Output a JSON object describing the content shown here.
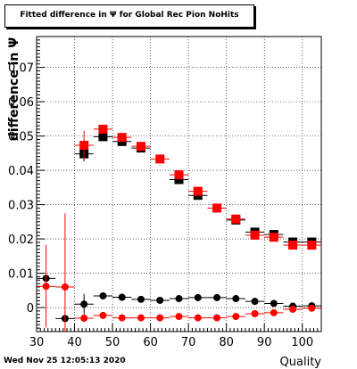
{
  "chart_data": {
    "type": "scatter",
    "title": "Fitted difference in Ψ  for Global Rec Pion NoHits",
    "xlabel": "Quality",
    "ylabel": "difference in Ψ",
    "xlim": [
      30,
      105
    ],
    "ylim": [
      -0.007,
      0.079
    ],
    "xticks": [
      30,
      40,
      50,
      60,
      70,
      80,
      90,
      100
    ],
    "xtick_labels": [
      "30",
      "40",
      "50",
      "60",
      "70",
      "80",
      "90",
      "100"
    ],
    "yticks": [
      0,
      0.01,
      0.02,
      0.03,
      0.04,
      0.05,
      0.06,
      0.07
    ],
    "ytick_labels": [
      "0",
      "0.01",
      "0.02",
      "0.03",
      "0.04",
      "0.05",
      "0.06",
      "0.07"
    ],
    "grid": true,
    "series": [
      {
        "marker": "square",
        "color": "#000000",
        "points": [
          {
            "x": 42.5,
            "y": 0.0448,
            "yerr": 0.0022
          },
          {
            "x": 47.5,
            "y": 0.0498,
            "yerr": 0.0008
          },
          {
            "x": 52.5,
            "y": 0.0484,
            "yerr": 0.0004
          },
          {
            "x": 57.5,
            "y": 0.0465,
            "yerr": 0.0004
          },
          {
            "x": 67.5,
            "y": 0.0373,
            "yerr": 0.0004
          },
          {
            "x": 72.5,
            "y": 0.0327,
            "yerr": 0.0004
          },
          {
            "x": 82.5,
            "y": 0.0255,
            "yerr": 0.0004
          },
          {
            "x": 87.5,
            "y": 0.022,
            "yerr": 0.0004
          },
          {
            "x": 92.5,
            "y": 0.0213,
            "yerr": 0.0004
          },
          {
            "x": 97.5,
            "y": 0.0191,
            "yerr": 0.0004
          },
          {
            "x": 102.5,
            "y": 0.0191,
            "yerr": 0.0004
          }
        ]
      },
      {
        "marker": "square",
        "color": "#ff0000",
        "points": [
          {
            "x": 42.5,
            "y": 0.0473,
            "yerr": 0.0042
          },
          {
            "x": 47.5,
            "y": 0.052,
            "yerr": 0.001
          },
          {
            "x": 52.5,
            "y": 0.0496,
            "yerr": 0.0004
          },
          {
            "x": 57.5,
            "y": 0.047,
            "yerr": 0.0004
          },
          {
            "x": 62.5,
            "y": 0.0433,
            "yerr": 0.0004
          },
          {
            "x": 67.5,
            "y": 0.0387,
            "yerr": 0.0004
          },
          {
            "x": 72.5,
            "y": 0.0339,
            "yerr": 0.0004
          },
          {
            "x": 77.5,
            "y": 0.029,
            "yerr": 0.0004
          },
          {
            "x": 82.5,
            "y": 0.0258,
            "yerr": 0.0004
          },
          {
            "x": 87.5,
            "y": 0.0211,
            "yerr": 0.0004
          },
          {
            "x": 92.5,
            "y": 0.0205,
            "yerr": 0.0004
          },
          {
            "x": 97.5,
            "y": 0.0182,
            "yerr": 0.0004
          },
          {
            "x": 102.5,
            "y": 0.0182,
            "yerr": 0.0004
          }
        ]
      },
      {
        "marker": "circle",
        "color": "#000000",
        "points": [
          {
            "x": 32.5,
            "y": 0.0085,
            "yerr": 0.0006
          },
          {
            "x": 37.5,
            "y": -0.0032,
            "yerr": 0.0006
          },
          {
            "x": 42.5,
            "y": 0.001,
            "yerr": 0.003
          },
          {
            "x": 47.5,
            "y": 0.0034,
            "yerr": 0.0006
          },
          {
            "x": 52.5,
            "y": 0.003,
            "yerr": 0.0006
          },
          {
            "x": 57.5,
            "y": 0.0024,
            "yerr": 0.0005
          },
          {
            "x": 62.5,
            "y": 0.0021,
            "yerr": 0.0005
          },
          {
            "x": 67.5,
            "y": 0.0026,
            "yerr": 0.0005
          },
          {
            "x": 72.5,
            "y": 0.0029,
            "yerr": 0.0005
          },
          {
            "x": 77.5,
            "y": 0.0029,
            "yerr": 0.0005
          },
          {
            "x": 82.5,
            "y": 0.0026,
            "yerr": 0.0005
          },
          {
            "x": 87.5,
            "y": 0.0018,
            "yerr": 0.0005
          },
          {
            "x": 92.5,
            "y": 0.0012,
            "yerr": 0.0005
          },
          {
            "x": 97.5,
            "y": 0.0004,
            "yerr": 0.0005
          },
          {
            "x": 102.5,
            "y": 0.0005,
            "yerr": 0.0005
          }
        ]
      },
      {
        "marker": "circle",
        "color": "#ff0000",
        "points": [
          {
            "x": 32.5,
            "y": 0.0062,
            "yerr": 0.012
          },
          {
            "x": 37.5,
            "y": 0.006,
            "yerr": 0.0215
          },
          {
            "x": 42.5,
            "y": -0.0031,
            "yerr": 0.001
          },
          {
            "x": 47.5,
            "y": -0.0023,
            "yerr": 0.0007
          },
          {
            "x": 52.5,
            "y": -0.003,
            "yerr": 0.0005
          },
          {
            "x": 57.5,
            "y": -0.003,
            "yerr": 0.0005
          },
          {
            "x": 62.5,
            "y": -0.003,
            "yerr": 0.0005
          },
          {
            "x": 67.5,
            "y": -0.0026,
            "yerr": 0.0005
          },
          {
            "x": 72.5,
            "y": -0.003,
            "yerr": 0.0005
          },
          {
            "x": 77.5,
            "y": -0.003,
            "yerr": 0.0005
          },
          {
            "x": 82.5,
            "y": -0.0026,
            "yerr": 0.0005
          },
          {
            "x": 87.5,
            "y": -0.0018,
            "yerr": 0.0005
          },
          {
            "x": 92.5,
            "y": -0.0015,
            "yerr": 0.0005
          },
          {
            "x": 97.5,
            "y": -0.0005,
            "yerr": 0.0005
          },
          {
            "x": 102.5,
            "y": -0.0002,
            "yerr": 0.0005
          }
        ]
      }
    ],
    "footer": "Wed Nov 25 12:05:13 2020"
  }
}
